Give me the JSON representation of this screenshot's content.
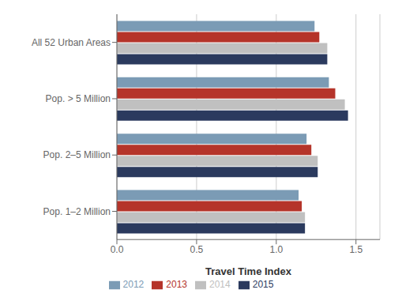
{
  "chart_data": {
    "type": "bar",
    "orientation": "horizontal",
    "categories": [
      "All 52 Urban Areas",
      "Pop. > 5 Million",
      "Pop. 2–5 Million",
      "Pop. 1–2 Million"
    ],
    "series": [
      {
        "name": "2012",
        "color": "#7b9bb5",
        "values": [
          1.24,
          1.33,
          1.19,
          1.14
        ]
      },
      {
        "name": "2013",
        "color": "#b5342a",
        "values": [
          1.27,
          1.37,
          1.22,
          1.16
        ]
      },
      {
        "name": "2014",
        "color": "#c0c0c0",
        "values": [
          1.32,
          1.43,
          1.26,
          1.18
        ]
      },
      {
        "name": "2015",
        "color": "#2b3a5e",
        "values": [
          1.32,
          1.45,
          1.26,
          1.18
        ]
      }
    ],
    "xlabel": "Travel Time Index",
    "xlim": [
      0,
      1.65
    ],
    "xticks": [
      {
        "value": 0,
        "label": "0.0"
      },
      0.5,
      {
        "value": 1,
        "label": "1.0"
      },
      1.5
    ],
    "grid": true,
    "legend": "bottom"
  }
}
